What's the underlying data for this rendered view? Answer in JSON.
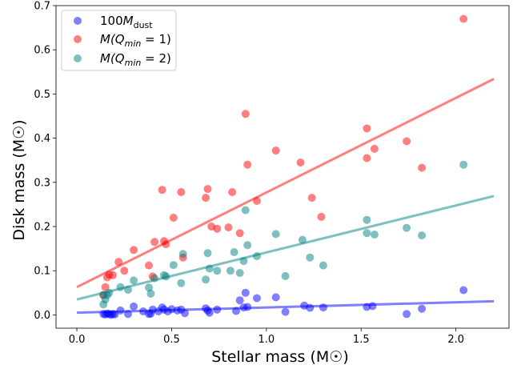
{
  "chart_data": {
    "type": "scatter",
    "xlabel": "Stellar mass",
    "xlabel_unit": "(M☉)",
    "ylabel": "Disk mass",
    "ylabel_unit": "(M☉)",
    "xlim": [
      -0.11,
      2.28
    ],
    "ylim": [
      -0.03,
      0.7
    ],
    "x_ticks": [
      {
        "value": 0.0,
        "label": "0.0"
      },
      {
        "value": 0.5,
        "label": "0.5"
      },
      {
        "value": 1.0,
        "label": "1.0"
      },
      {
        "value": 1.5,
        "label": "1.5"
      },
      {
        "value": 2.0,
        "label": "2.0"
      }
    ],
    "y_ticks": [
      {
        "value": 0.0,
        "label": "0.0"
      },
      {
        "value": 0.1,
        "label": "0.1"
      },
      {
        "value": 0.2,
        "label": "0.2"
      },
      {
        "value": 0.3,
        "label": "0.3"
      },
      {
        "value": 0.4,
        "label": "0.4"
      },
      {
        "value": 0.5,
        "label": "0.5"
      },
      {
        "value": 0.6,
        "label": "0.6"
      },
      {
        "value": 0.7,
        "label": "0.7"
      }
    ],
    "grid": false,
    "legend_position": "top-left",
    "series": [
      {
        "name": "100M_dust",
        "color": "#0000ff",
        "fit": [
          [
            0.0,
            0.005
          ],
          [
            2.2,
            0.031
          ]
        ],
        "points": [
          [
            0.14,
            0.002
          ],
          [
            0.15,
            0.001
          ],
          [
            0.16,
            0.003
          ],
          [
            0.17,
            0.002
          ],
          [
            0.18,
            0.0
          ],
          [
            0.19,
            0.002
          ],
          [
            0.2,
            0.001
          ],
          [
            0.23,
            0.01
          ],
          [
            0.27,
            0.002
          ],
          [
            0.3,
            0.019
          ],
          [
            0.35,
            0.008
          ],
          [
            0.38,
            0.002
          ],
          [
            0.39,
            0.003
          ],
          [
            0.4,
            0.012
          ],
          [
            0.43,
            0.008
          ],
          [
            0.45,
            0.017
          ],
          [
            0.46,
            0.012
          ],
          [
            0.48,
            0.008
          ],
          [
            0.5,
            0.013
          ],
          [
            0.53,
            0.01
          ],
          [
            0.55,
            0.012
          ],
          [
            0.57,
            0.004
          ],
          [
            0.68,
            0.015
          ],
          [
            0.69,
            0.01
          ],
          [
            0.7,
            0.005
          ],
          [
            0.74,
            0.012
          ],
          [
            0.84,
            0.009
          ],
          [
            0.86,
            0.033
          ],
          [
            0.88,
            0.017
          ],
          [
            0.89,
            0.05
          ],
          [
            0.9,
            0.018
          ],
          [
            0.95,
            0.038
          ],
          [
            1.05,
            0.04
          ],
          [
            1.1,
            0.007
          ],
          [
            1.2,
            0.021
          ],
          [
            1.23,
            0.016
          ],
          [
            1.3,
            0.017
          ],
          [
            1.53,
            0.018
          ],
          [
            1.56,
            0.02
          ],
          [
            1.74,
            0.002
          ],
          [
            1.82,
            0.014
          ],
          [
            2.04,
            0.056
          ]
        ]
      },
      {
        "name": "M(Q_min = 1)",
        "color": "#ff0000",
        "fit": [
          [
            0.0,
            0.063
          ],
          [
            2.2,
            0.534
          ]
        ],
        "points": [
          [
            0.14,
            0.045
          ],
          [
            0.15,
            0.063
          ],
          [
            0.16,
            0.085
          ],
          [
            0.17,
            0.091
          ],
          [
            0.19,
            0.09
          ],
          [
            0.22,
            0.12
          ],
          [
            0.25,
            0.1
          ],
          [
            0.3,
            0.147
          ],
          [
            0.38,
            0.112
          ],
          [
            0.4,
            0.087
          ],
          [
            0.41,
            0.165
          ],
          [
            0.45,
            0.283
          ],
          [
            0.46,
            0.167
          ],
          [
            0.47,
            0.16
          ],
          [
            0.51,
            0.22
          ],
          [
            0.55,
            0.278
          ],
          [
            0.56,
            0.13
          ],
          [
            0.68,
            0.265
          ],
          [
            0.69,
            0.285
          ],
          [
            0.71,
            0.2
          ],
          [
            0.74,
            0.195
          ],
          [
            0.8,
            0.198
          ],
          [
            0.82,
            0.278
          ],
          [
            0.86,
            0.185
          ],
          [
            0.89,
            0.455
          ],
          [
            0.9,
            0.34
          ],
          [
            0.95,
            0.258
          ],
          [
            1.05,
            0.372
          ],
          [
            1.18,
            0.345
          ],
          [
            1.24,
            0.265
          ],
          [
            1.29,
            0.222
          ],
          [
            1.53,
            0.422
          ],
          [
            1.53,
            0.355
          ],
          [
            1.57,
            0.376
          ],
          [
            1.74,
            0.393
          ],
          [
            1.82,
            0.333
          ],
          [
            2.04,
            0.67
          ]
        ]
      },
      {
        "name": "M(Q_min = 2)",
        "color": "#008080",
        "fit": [
          [
            0.0,
            0.035
          ],
          [
            2.2,
            0.269
          ]
        ],
        "points": [
          [
            0.14,
            0.024
          ],
          [
            0.14,
            0.045
          ],
          [
            0.15,
            0.035
          ],
          [
            0.16,
            0.045
          ],
          [
            0.17,
            0.05
          ],
          [
            0.23,
            0.063
          ],
          [
            0.27,
            0.057
          ],
          [
            0.3,
            0.078
          ],
          [
            0.38,
            0.062
          ],
          [
            0.39,
            0.048
          ],
          [
            0.41,
            0.083
          ],
          [
            0.46,
            0.09
          ],
          [
            0.47,
            0.087
          ],
          [
            0.51,
            0.113
          ],
          [
            0.55,
            0.072
          ],
          [
            0.56,
            0.138
          ],
          [
            0.68,
            0.08
          ],
          [
            0.69,
            0.14
          ],
          [
            0.7,
            0.105
          ],
          [
            0.74,
            0.1
          ],
          [
            0.81,
            0.1
          ],
          [
            0.83,
            0.142
          ],
          [
            0.86,
            0.095
          ],
          [
            0.88,
            0.122
          ],
          [
            0.89,
            0.237
          ],
          [
            0.9,
            0.158
          ],
          [
            0.95,
            0.133
          ],
          [
            1.05,
            0.183
          ],
          [
            1.1,
            0.088
          ],
          [
            1.19,
            0.17
          ],
          [
            1.23,
            0.13
          ],
          [
            1.3,
            0.112
          ],
          [
            1.53,
            0.215
          ],
          [
            1.53,
            0.185
          ],
          [
            1.57,
            0.182
          ],
          [
            1.74,
            0.197
          ],
          [
            1.82,
            0.18
          ],
          [
            2.04,
            0.34
          ]
        ]
      }
    ]
  },
  "legend": {
    "items": [
      {
        "color": "#0000ff",
        "pre": "100",
        "main": "M",
        "sub": "dust",
        "post": ""
      },
      {
        "color": "#ff0000",
        "pre": "",
        "main": "M(Q",
        "sub": "min",
        "post": " = 1)"
      },
      {
        "color": "#008080",
        "pre": "",
        "main": "M(Q",
        "sub": "min",
        "post": " = 2)"
      }
    ]
  }
}
